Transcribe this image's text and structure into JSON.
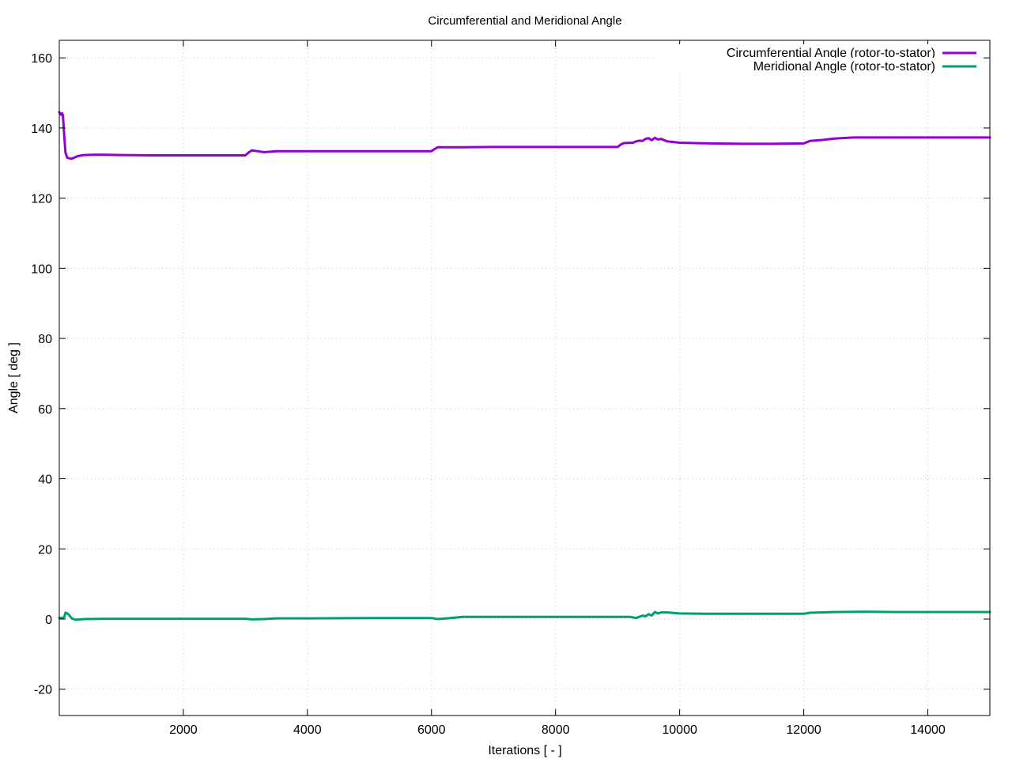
{
  "chart_data": {
    "type": "line",
    "title": "Circumferential and Meridional Angle",
    "xlabel": "Iterations [ - ]",
    "ylabel": "Angle [ deg ]",
    "xlim": [
      1,
      15000
    ],
    "ylim": [
      -27.5,
      165
    ],
    "xticks": [
      2000,
      4000,
      6000,
      8000,
      10000,
      12000,
      14000
    ],
    "yticks": [
      -20,
      0,
      20,
      40,
      60,
      80,
      100,
      120,
      140,
      160
    ],
    "grid": true,
    "legend_position": "top-right",
    "series": [
      {
        "name": "Circumferential Angle (rotor-to-stator)",
        "color": "#9400d3",
        "points": [
          [
            1,
            144.5
          ],
          [
            30,
            143.8
          ],
          [
            50,
            144.2
          ],
          [
            60,
            143.5
          ],
          [
            80,
            138
          ],
          [
            100,
            133
          ],
          [
            130,
            131.5
          ],
          [
            200,
            131.2
          ],
          [
            300,
            132
          ],
          [
            400,
            132.3
          ],
          [
            600,
            132.4
          ],
          [
            1000,
            132.3
          ],
          [
            1500,
            132.2
          ],
          [
            2000,
            132.2
          ],
          [
            2500,
            132.2
          ],
          [
            3000,
            132.2
          ],
          [
            3050,
            133
          ],
          [
            3100,
            133.6
          ],
          [
            3200,
            133.4
          ],
          [
            3300,
            133.1
          ],
          [
            3500,
            133.4
          ],
          [
            4000,
            133.4
          ],
          [
            5000,
            133.4
          ],
          [
            6000,
            133.4
          ],
          [
            6050,
            134
          ],
          [
            6100,
            134.5
          ],
          [
            6500,
            134.5
          ],
          [
            7000,
            134.6
          ],
          [
            8000,
            134.6
          ],
          [
            9000,
            134.6
          ],
          [
            9050,
            135.3
          ],
          [
            9100,
            135.7
          ],
          [
            9250,
            135.8
          ],
          [
            9300,
            136.2
          ],
          [
            9350,
            136.4
          ],
          [
            9400,
            136.3
          ],
          [
            9450,
            136.9
          ],
          [
            9500,
            137.1
          ],
          [
            9550,
            136.5
          ],
          [
            9600,
            137.2
          ],
          [
            9650,
            136.7
          ],
          [
            9700,
            136.9
          ],
          [
            9800,
            136.2
          ],
          [
            10000,
            135.8
          ],
          [
            10500,
            135.6
          ],
          [
            11000,
            135.5
          ],
          [
            11500,
            135.5
          ],
          [
            12000,
            135.6
          ],
          [
            12100,
            136.3
          ],
          [
            12300,
            136.6
          ],
          [
            12500,
            137
          ],
          [
            12800,
            137.3
          ],
          [
            13000,
            137.3
          ],
          [
            13500,
            137.3
          ],
          [
            14000,
            137.3
          ],
          [
            14500,
            137.3
          ],
          [
            15000,
            137.3
          ]
        ]
      },
      {
        "name": "Meridional Angle (rotor-to-stator)",
        "color": "#009e73",
        "points": [
          [
            1,
            0.3
          ],
          [
            50,
            0.4
          ],
          [
            80,
            0.5
          ],
          [
            100,
            1.8
          ],
          [
            140,
            1.5
          ],
          [
            200,
            0.2
          ],
          [
            260,
            -0.2
          ],
          [
            400,
            0
          ],
          [
            800,
            0.1
          ],
          [
            1500,
            0.1
          ],
          [
            2000,
            0.1
          ],
          [
            3000,
            0.1
          ],
          [
            3100,
            -0.1
          ],
          [
            3300,
            0
          ],
          [
            3500,
            0.2
          ],
          [
            4000,
            0.2
          ],
          [
            5000,
            0.3
          ],
          [
            6000,
            0.3
          ],
          [
            6100,
            0
          ],
          [
            6250,
            0.2
          ],
          [
            6500,
            0.6
          ],
          [
            7000,
            0.6
          ],
          [
            8000,
            0.6
          ],
          [
            9000,
            0.6
          ],
          [
            9200,
            0.6
          ],
          [
            9300,
            0.3
          ],
          [
            9400,
            1
          ],
          [
            9450,
            0.8
          ],
          [
            9500,
            1.4
          ],
          [
            9550,
            1
          ],
          [
            9600,
            2
          ],
          [
            9650,
            1.6
          ],
          [
            9700,
            1.9
          ],
          [
            9800,
            1.9
          ],
          [
            10000,
            1.6
          ],
          [
            10500,
            1.5
          ],
          [
            11000,
            1.5
          ],
          [
            11500,
            1.5
          ],
          [
            12000,
            1.5
          ],
          [
            12100,
            1.8
          ],
          [
            12500,
            2
          ],
          [
            13000,
            2.1
          ],
          [
            13500,
            2
          ],
          [
            14000,
            2
          ],
          [
            15000,
            2
          ]
        ]
      }
    ]
  }
}
